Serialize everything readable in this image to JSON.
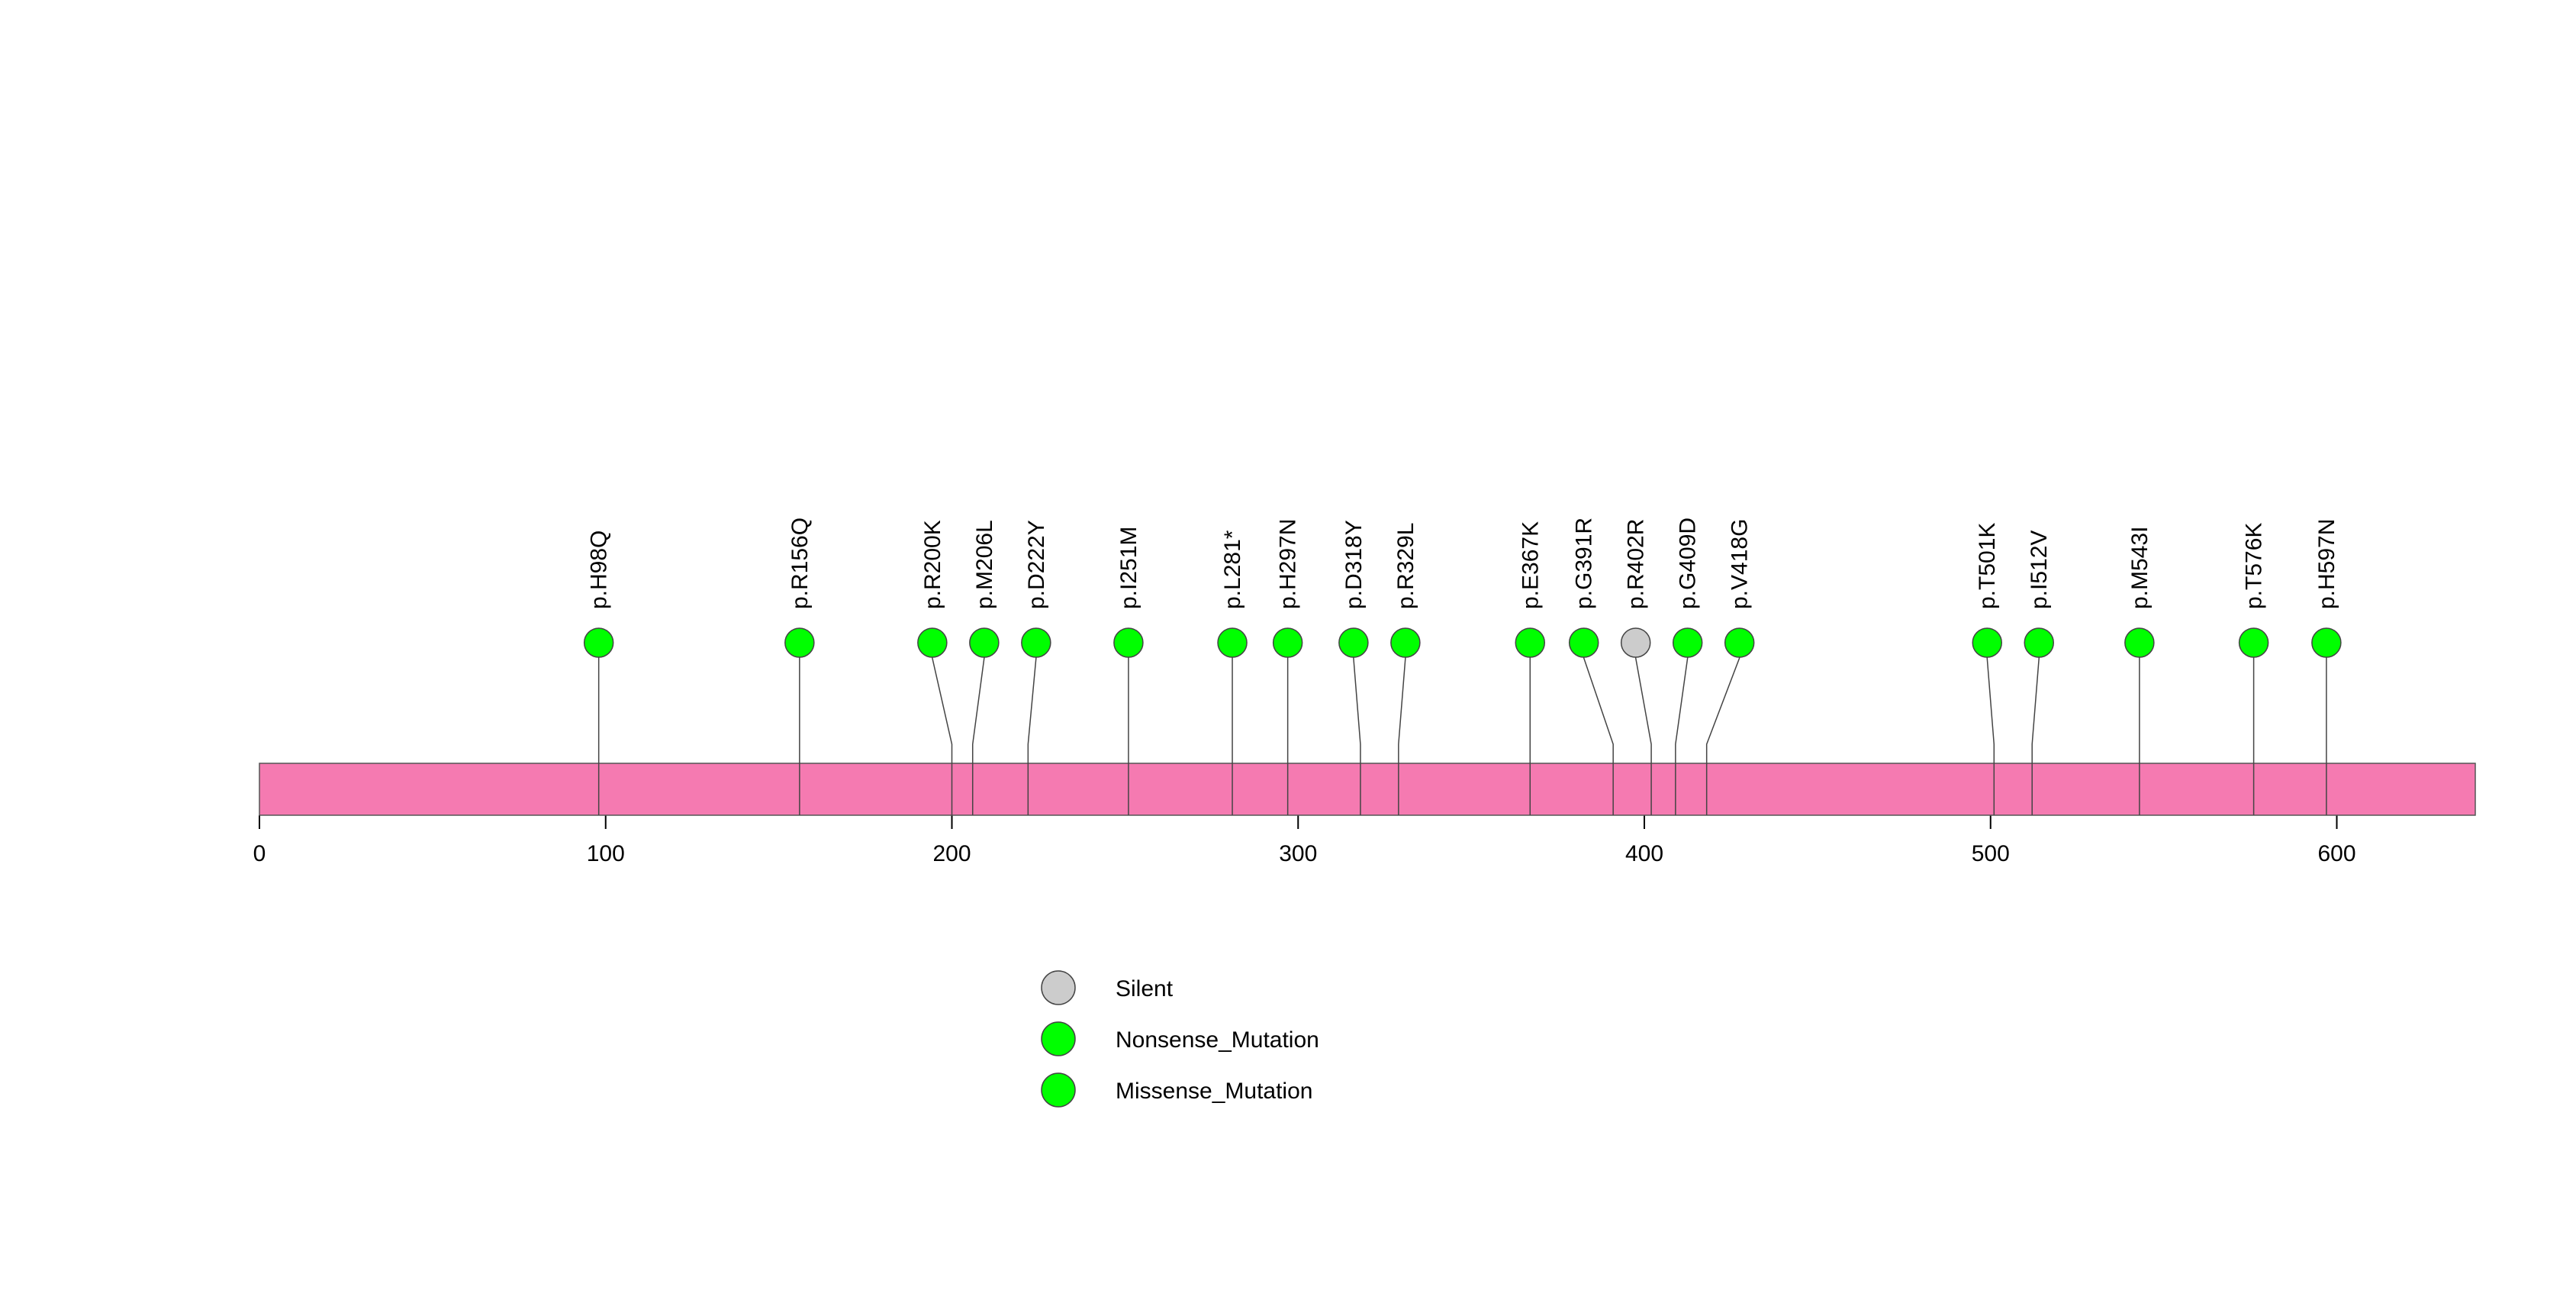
{
  "chart_data": {
    "type": "lollipop",
    "protein_length": 640,
    "x_axis": {
      "min": 0,
      "max": 640,
      "ticks": [
        0,
        100,
        200,
        300,
        400,
        500,
        600
      ],
      "tick_labels": [
        "0",
        "100",
        "200",
        "300",
        "400",
        "500",
        "600"
      ]
    },
    "domain_bar": {
      "start": 0,
      "end": 640,
      "color": "#f57ab1"
    },
    "mutations": [
      {
        "label": "p.H98Q",
        "position": 98,
        "type": "Missense_Mutation"
      },
      {
        "label": "p.R156Q",
        "position": 156,
        "type": "Missense_Mutation"
      },
      {
        "label": "p.R200K",
        "position": 200,
        "type": "Missense_Mutation"
      },
      {
        "label": "p.M206L",
        "position": 206,
        "type": "Missense_Mutation"
      },
      {
        "label": "p.D222Y",
        "position": 222,
        "type": "Missense_Mutation"
      },
      {
        "label": "p.I251M",
        "position": 251,
        "type": "Missense_Mutation"
      },
      {
        "label": "p.L281*",
        "position": 281,
        "type": "Nonsense_Mutation"
      },
      {
        "label": "p.H297N",
        "position": 297,
        "type": "Missense_Mutation"
      },
      {
        "label": "p.D318Y",
        "position": 318,
        "type": "Missense_Mutation"
      },
      {
        "label": "p.R329L",
        "position": 329,
        "type": "Missense_Mutation"
      },
      {
        "label": "p.E367K",
        "position": 367,
        "type": "Missense_Mutation"
      },
      {
        "label": "p.G391R",
        "position": 391,
        "type": "Missense_Mutation"
      },
      {
        "label": "p.R402R",
        "position": 402,
        "type": "Silent"
      },
      {
        "label": "p.G409D",
        "position": 409,
        "type": "Missense_Mutation"
      },
      {
        "label": "p.V418G",
        "position": 418,
        "type": "Missense_Mutation"
      },
      {
        "label": "p.T501K",
        "position": 501,
        "type": "Missense_Mutation"
      },
      {
        "label": "p.I512V",
        "position": 512,
        "type": "Missense_Mutation"
      },
      {
        "label": "p.M543I",
        "position": 543,
        "type": "Missense_Mutation"
      },
      {
        "label": "p.T576K",
        "position": 576,
        "type": "Missense_Mutation"
      },
      {
        "label": "p.H597N",
        "position": 597,
        "type": "Missense_Mutation"
      }
    ],
    "legend": [
      {
        "label": "Silent",
        "color": "#cccccc"
      },
      {
        "label": "Nonsense_Mutation",
        "color": "#00ff00"
      },
      {
        "label": "Missense_Mutation",
        "color": "#00ff00"
      }
    ],
    "legend_placement": "bottom-center",
    "grid": false
  }
}
